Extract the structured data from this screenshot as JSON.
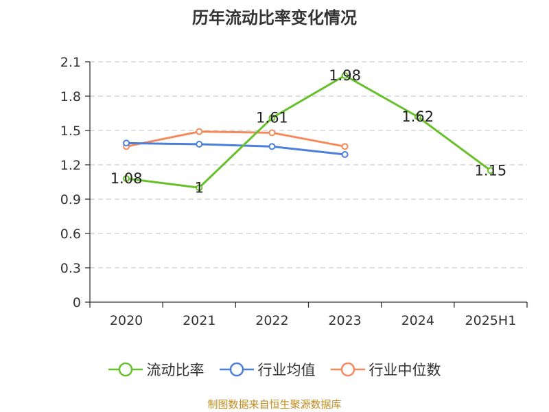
{
  "title": "历年流动比率变化情况",
  "source": "制图数据来自恒生聚源数据库",
  "colors": {
    "current_ratio": "#66c02a",
    "industry_avg": "#4a7fdc",
    "industry_median": "#f4895a"
  },
  "chart_data": {
    "type": "line",
    "title": "历年流动比率变化情况",
    "categories": [
      "2020",
      "2021",
      "2022",
      "2023",
      "2024",
      "2025H1"
    ],
    "ylim": [
      0,
      2.1
    ],
    "yticks": [
      "0",
      "0.3",
      "0.6",
      "0.9",
      "1.2",
      "1.5",
      "1.8",
      "2.1"
    ],
    "grid": true,
    "legend_position": "bottom",
    "series": [
      {
        "name": "流动比率",
        "values": [
          1.08,
          1.0,
          1.61,
          1.98,
          1.62,
          1.15
        ],
        "labels": [
          "1.08",
          "1",
          "1.61",
          "1.98",
          "1.62",
          "1.15"
        ]
      },
      {
        "name": "行业均值",
        "values": [
          1.39,
          1.38,
          1.36,
          1.29,
          null,
          null
        ]
      },
      {
        "name": "行业中位数",
        "values": [
          1.36,
          1.49,
          1.48,
          1.36,
          null,
          null
        ]
      }
    ]
  }
}
